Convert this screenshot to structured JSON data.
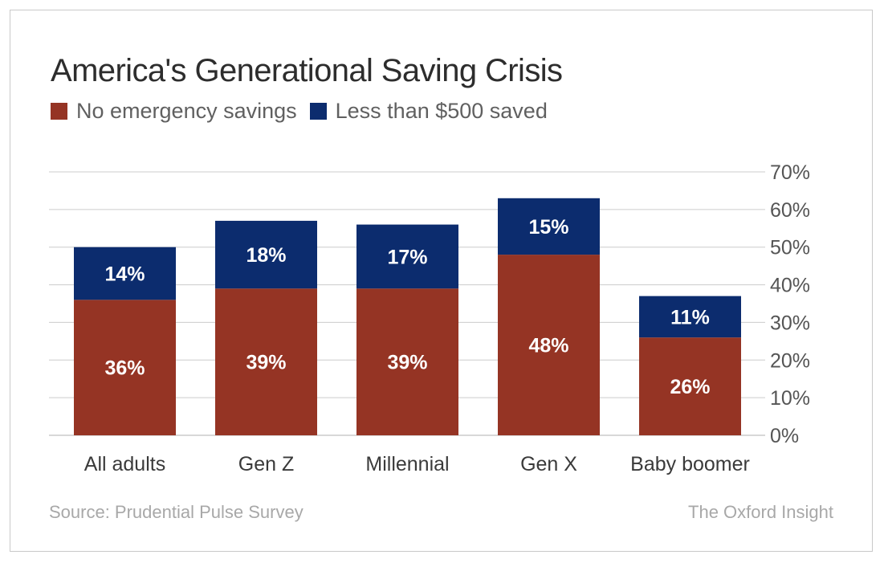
{
  "chart_data": {
    "type": "bar",
    "stacked": true,
    "title": "America's Generational Saving Crisis",
    "categories": [
      "All adults",
      "Gen Z",
      "Millennial",
      "Gen X",
      "Baby boomer"
    ],
    "series": [
      {
        "name": "No emergency savings",
        "values": [
          36,
          39,
          39,
          48,
          26
        ],
        "labels": [
          "36%",
          "39%",
          "39%",
          "48%",
          "26%"
        ],
        "color": "#953424"
      },
      {
        "name": "Less than $500 saved",
        "values": [
          14,
          18,
          17,
          15,
          11
        ],
        "labels": [
          "14%",
          "18%",
          "17%",
          "15%",
          "11%"
        ],
        "color": "#0c2c6e"
      }
    ],
    "ylim": [
      0,
      70
    ],
    "yticks": [
      0,
      10,
      20,
      30,
      40,
      50,
      60,
      70
    ],
    "ytick_labels": [
      "0%",
      "10%",
      "20%",
      "30%",
      "40%",
      "50%",
      "60%",
      "70%"
    ],
    "y_axis_side": "right",
    "grid": true,
    "legend_position": "top-left",
    "xlabel": "",
    "ylabel": ""
  },
  "footer": {
    "source": "Source: Prudential Pulse Survey",
    "brand": "The Oxford Insight"
  },
  "colors": {
    "grid": "#cccccc",
    "tick_text": "#555555",
    "category_text": "#3a3a3a",
    "bar_label": "#ffffff"
  }
}
